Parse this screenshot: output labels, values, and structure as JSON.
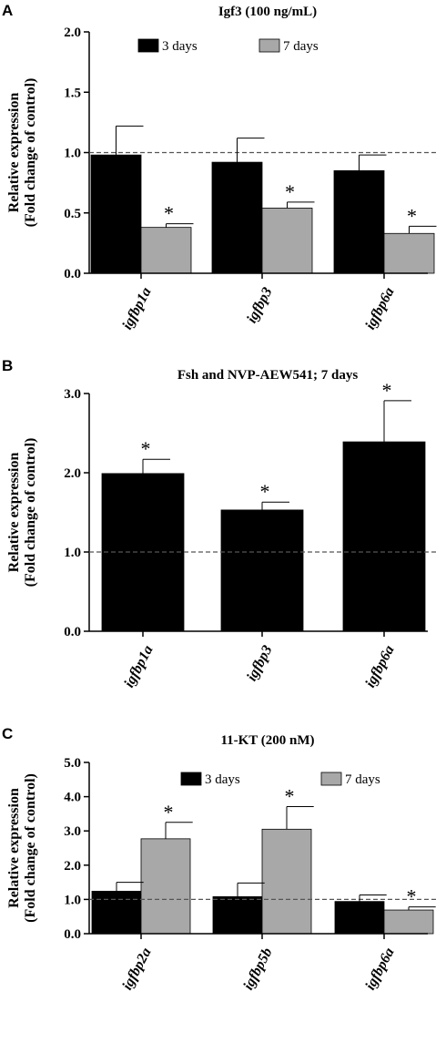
{
  "chart_data": [
    {
      "panel": "A",
      "type": "bar",
      "title": "Igf3 (100 ng/mL)",
      "ylabel": [
        "Relative expression",
        "(Fold change of control)"
      ],
      "ylim": [
        0,
        2.0
      ],
      "yticks": [
        "0.0",
        "0.5",
        "1.0",
        "1.5",
        "2.0"
      ],
      "reference_line": 1.0,
      "categories": [
        "igfbp1a",
        "igfbp3",
        "igfbp6a"
      ],
      "series": [
        {
          "name": "3 days",
          "color": "#000000",
          "values": [
            0.98,
            0.92,
            0.85
          ],
          "errors": [
            0.24,
            0.2,
            0.13
          ],
          "significant": [
            false,
            false,
            false
          ]
        },
        {
          "name": "7 days",
          "color": "#a8a8a8",
          "values": [
            0.38,
            0.54,
            0.33
          ],
          "errors": [
            0.03,
            0.05,
            0.06
          ],
          "significant": [
            true,
            true,
            true
          ]
        }
      ],
      "legend_position": "top"
    },
    {
      "panel": "B",
      "type": "bar",
      "title": "Fsh and NVP-AEW541; 7 days",
      "ylabel": [
        "Relative expression",
        "(Fold change of control)"
      ],
      "ylim": [
        0,
        3.0
      ],
      "yticks": [
        "0.0",
        "1.0",
        "2.0",
        "3.0"
      ],
      "reference_line": 1.0,
      "categories": [
        "igfbp1a",
        "igfbp3",
        "igfbp6a"
      ],
      "series": [
        {
          "color": "#000000",
          "values": [
            1.99,
            1.53,
            2.39
          ],
          "errors": [
            0.18,
            0.1,
            0.52
          ],
          "significant": [
            true,
            true,
            true
          ]
        }
      ]
    },
    {
      "panel": "C",
      "type": "bar",
      "title": "11-KT (200 nM)",
      "ylabel": [
        "Relative expression",
        "(Fold change of control)"
      ],
      "ylim": [
        0,
        5.0
      ],
      "yticks": [
        "0.0",
        "1.0",
        "2.0",
        "3.0",
        "4.0",
        "5.0"
      ],
      "reference_line": 1.0,
      "categories": [
        "igfbp2a",
        "igfbp5b",
        "igfbp6a"
      ],
      "series": [
        {
          "name": "3 days",
          "color": "#000000",
          "values": [
            1.24,
            1.08,
            0.94
          ],
          "errors": [
            0.26,
            0.4,
            0.19
          ],
          "significant": [
            false,
            false,
            false
          ]
        },
        {
          "name": "7 days",
          "color": "#a8a8a8",
          "values": [
            2.77,
            3.05,
            0.69
          ],
          "errors": [
            0.48,
            0.66,
            0.09
          ],
          "significant": [
            true,
            true,
            true
          ]
        }
      ],
      "legend_position": "top"
    }
  ],
  "significance_symbol": "*"
}
